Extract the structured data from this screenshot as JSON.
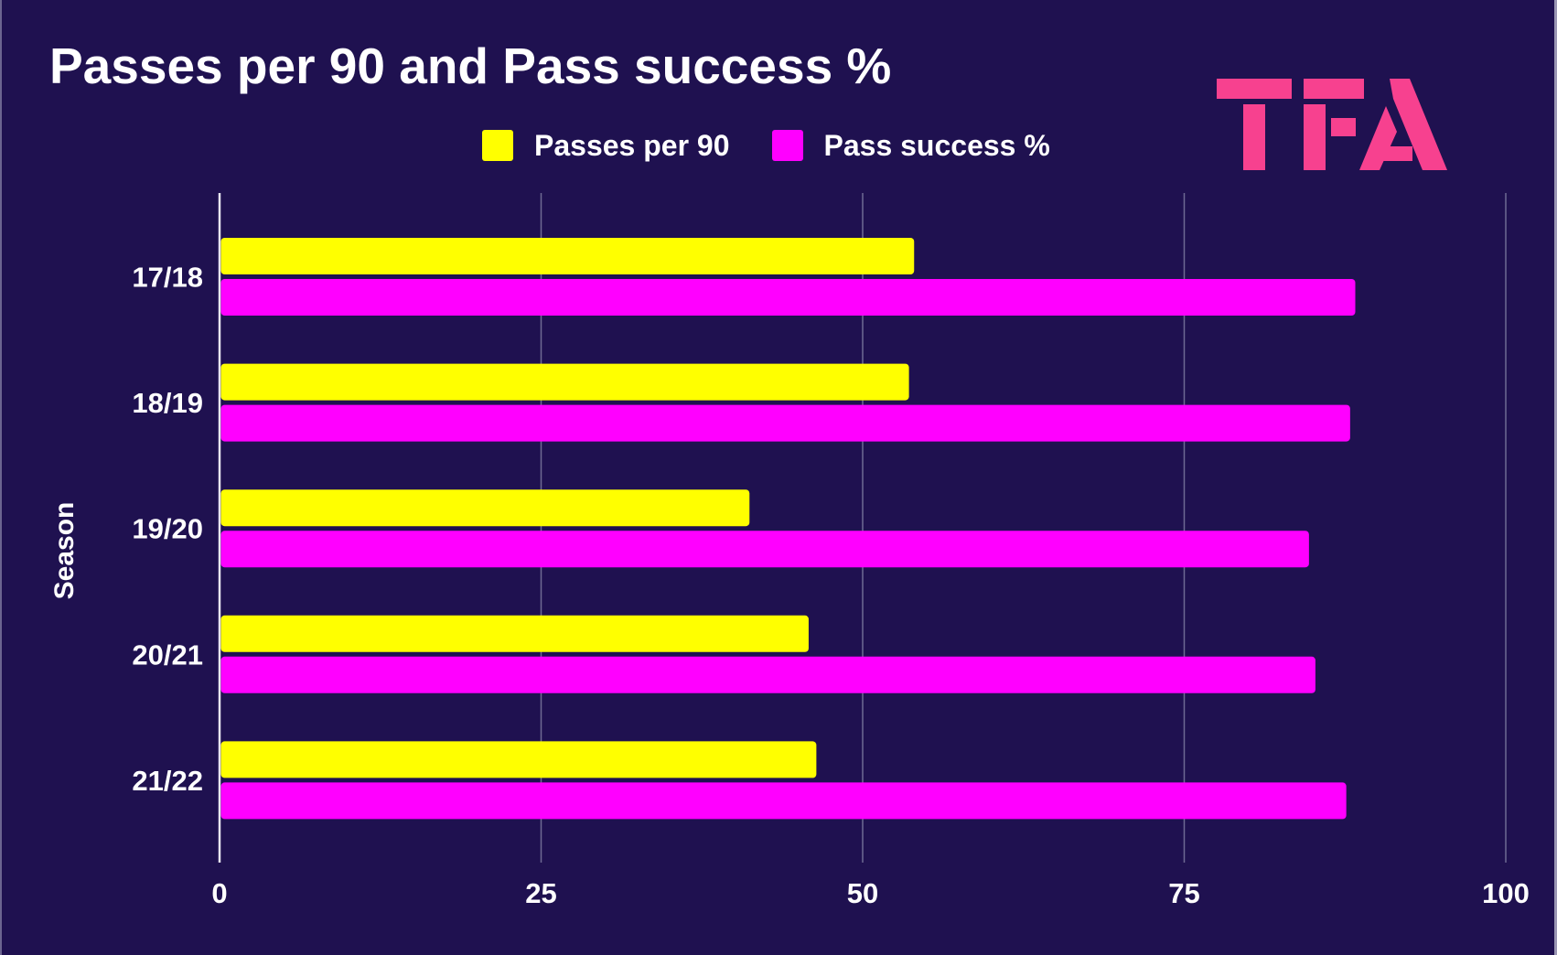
{
  "chart_data": {
    "type": "bar",
    "orientation": "horizontal",
    "title": "Passes per 90 and Pass success %",
    "xlabel": "",
    "ylabel": "Season",
    "categories": [
      "17/18",
      "18/19",
      "19/20",
      "20/21",
      "21/22"
    ],
    "series": [
      {
        "name": "Passes per 90",
        "color": "#ffff00",
        "values": [
          54.0,
          53.6,
          41.2,
          45.8,
          46.4
        ]
      },
      {
        "name": "Pass success %",
        "color": "#ff00ff",
        "values": [
          88.3,
          87.9,
          84.7,
          85.2,
          87.6
        ]
      }
    ],
    "xlim": [
      0,
      100
    ],
    "xticks": [
      "0",
      "25",
      "50",
      "75",
      "100"
    ],
    "xtick_values": [
      0,
      25,
      50,
      75,
      100
    ],
    "grid": true,
    "legend_position": "top-center"
  },
  "logo": {
    "text": "TFA",
    "color": "#f7418f"
  },
  "colors": {
    "background": "#1f1150",
    "gridline": "#6f6a93",
    "zero_axis": "#e8e6f0"
  }
}
